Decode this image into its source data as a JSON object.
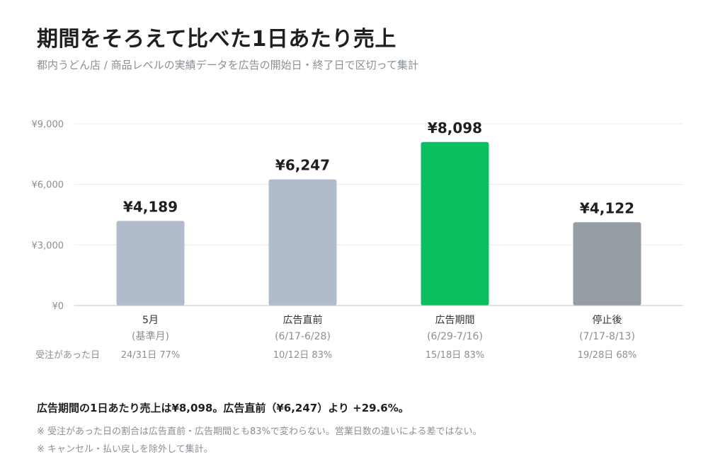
{
  "title": "期間をそろえて比べた1日あたり売上",
  "subtitle": "都内うどん店 / 商品レベルの実績データを広告の開始日・終了日で区切って集計",
  "chart_data": {
    "type": "bar",
    "ylim": [
      0,
      9000
    ],
    "yticks": [
      0,
      3000,
      6000,
      9000
    ],
    "ytick_labels": [
      "¥0",
      "¥3,000",
      "¥6,000",
      "¥9,000"
    ],
    "grid": true,
    "categories": [
      "5月",
      "広告直前",
      "広告期間",
      "停止後"
    ],
    "category_sublabels": [
      "(基準月)",
      "(6/17-6/28)",
      "(6/29-7/16)",
      "(7/17-8/13)"
    ],
    "values": [
      4189,
      6247,
      8098,
      4122
    ],
    "value_labels": [
      "¥4,189",
      "¥6,247",
      "¥8,098",
      "¥4,122"
    ],
    "bar_colors": [
      "#b0bccb",
      "#b0bccb",
      "#0bbf60",
      "#959da5"
    ],
    "order_row_label": "受注があった日",
    "order_days": [
      "24/31日 77%",
      "10/12日 83%",
      "15/18日 83%",
      "19/28日 68%"
    ]
  },
  "summary": "広告期間の1日あたり売上は¥8,098。広告直前（¥6,247）より +29.6%。",
  "notes": [
    "※ 受注があった日の割合は広告直前・広告期間とも83%で変わらない。営業日数の違いによる差ではない。",
    "※ キャンセル・払い戻しを除外して集計。"
  ]
}
